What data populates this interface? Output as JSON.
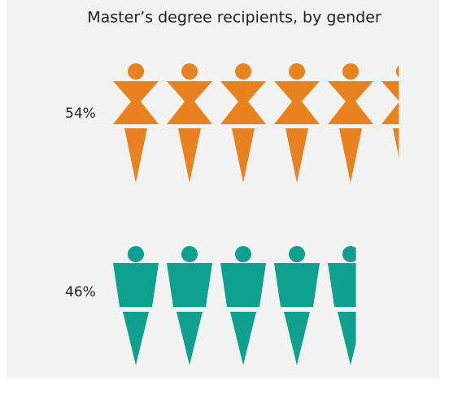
{
  "chart_data": {
    "type": "pictograph",
    "title": "Master’s degree recipients, by gender",
    "categories": [
      null,
      null
    ],
    "values": [
      54,
      46
    ],
    "value_labels": [
      "54%",
      "46%"
    ],
    "colors": [
      "#e8821e",
      "#0fa08f"
    ]
  }
}
